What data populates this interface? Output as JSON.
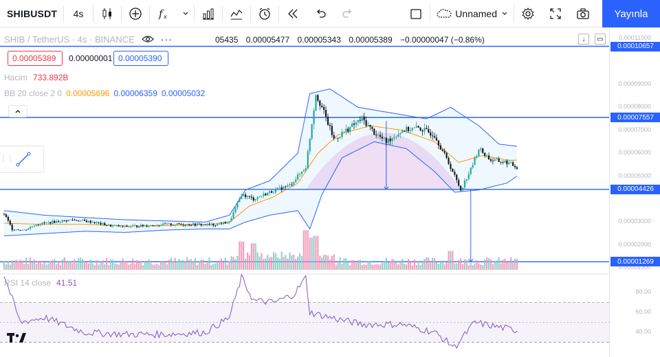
{
  "toolbar": {
    "symbol": "SHIBUSDT",
    "interval": "4s",
    "layout_name": "Unnamed",
    "publish_label": "Yayınla"
  },
  "legend": {
    "title": "SHIB / TetherUS · 4s · BINANCE",
    "ohlc": [
      "05435",
      "0.00005477",
      "0.00005343",
      "0.00005389",
      "−0.00000047 (−0.86%)"
    ],
    "bid": "0.00005389",
    "spread": "0.00000001",
    "ask": "0.00005390",
    "volume_label": "Hacim",
    "volume_value": "733.892B",
    "bb_label": "BB 20 close 2 0",
    "bb_middle": "0.00005696",
    "bb_upper": "0.00006359",
    "bb_lower": "0.00005032",
    "rsi_label": "RSI 14 close",
    "rsi_value": "41.51"
  },
  "price_scale": {
    "labels": [
      {
        "v": 0.00011,
        "t": "0.00011000"
      },
      {
        "v": 9e-05,
        "t": "0.00009000"
      },
      {
        "v": 8e-05,
        "t": "0.00008000"
      },
      {
        "v": 7e-05,
        "t": "0.00007000"
      },
      {
        "v": 6e-05,
        "t": "0.00006000"
      },
      {
        "v": 5e-05,
        "t": "0.00005000"
      },
      {
        "v": 3e-05,
        "t": "0.00003000"
      },
      {
        "v": 2e-05,
        "t": "0.00002000"
      },
      {
        "v": 1e-05,
        "t": "0.00001000"
      }
    ],
    "horizontal_lines": [
      {
        "v": 0.00010657,
        "t": "0.00010657"
      },
      {
        "v": 7.557e-05,
        "t": "0.00007557"
      },
      {
        "v": 4.426e-05,
        "t": "0.00004426"
      },
      {
        "v": 1.269e-05,
        "t": "0.00001269"
      }
    ]
  },
  "rsi_scale": {
    "labels": [
      {
        "v": 80,
        "t": "80.00"
      },
      {
        "v": 60,
        "t": "60.00"
      },
      {
        "v": 40,
        "t": "40.00"
      }
    ],
    "upper_band": 70,
    "lower_band": 30
  },
  "colors": {
    "up": "#26a69a",
    "down": "#131722",
    "bb_band": "#2962ff",
    "bb_mid": "#ff9800",
    "rsi": "#7e57c2",
    "hline": "#2962ff",
    "accent": "#2962ff"
  },
  "chart_data": {
    "type": "candlestick",
    "price_path": [
      [
        0,
        3.35e-05
      ],
      [
        4,
        2.7e-05
      ],
      [
        10,
        2.65e-05
      ],
      [
        16,
        2.9e-05
      ],
      [
        24,
        3e-05
      ],
      [
        34,
        3.1e-05
      ],
      [
        44,
        3e-05
      ],
      [
        52,
        2.85e-05
      ],
      [
        60,
        2.8e-05
      ],
      [
        72,
        2.85e-05
      ],
      [
        82,
        2.9e-05
      ],
      [
        92,
        2.9e-05
      ],
      [
        104,
        2.88e-05
      ],
      [
        112,
        3e-05
      ],
      [
        118,
        4.2e-05
      ],
      [
        124,
        4e-05
      ],
      [
        132,
        4.3e-05
      ],
      [
        142,
        4.6e-05
      ],
      [
        150,
        5.4e-05
      ],
      [
        155,
        8.6e-05
      ],
      [
        158,
        8e-05
      ],
      [
        164,
        6.6e-05
      ],
      [
        170,
        7e-05
      ],
      [
        178,
        7.5e-05
      ],
      [
        184,
        6.9e-05
      ],
      [
        190,
        6.5e-05
      ],
      [
        198,
        7e-05
      ],
      [
        206,
        7.1e-05
      ],
      [
        214,
        6.8e-05
      ],
      [
        222,
        5.4e-05
      ],
      [
        227,
        4.4e-05
      ],
      [
        232,
        5.3e-05
      ],
      [
        236,
        6.2e-05
      ],
      [
        242,
        5.7e-05
      ],
      [
        250,
        5.6e-05
      ],
      [
        255,
        5.39e-05
      ]
    ],
    "bb_upper": [
      [
        0,
        3.5e-05
      ],
      [
        20,
        3.3e-05
      ],
      [
        40,
        3.2e-05
      ],
      [
        60,
        3.1e-05
      ],
      [
        80,
        3.05e-05
      ],
      [
        100,
        3e-05
      ],
      [
        112,
        3.3e-05
      ],
      [
        120,
        4.4e-05
      ],
      [
        132,
        4.8e-05
      ],
      [
        146,
        6e-05
      ],
      [
        152,
        8.6e-05
      ],
      [
        162,
        8.8e-05
      ],
      [
        176,
        8e-05
      ],
      [
        196,
        7.7e-05
      ],
      [
        210,
        7.5e-05
      ],
      [
        222,
        8e-05
      ],
      [
        236,
        7.2e-05
      ],
      [
        246,
        6.4e-05
      ],
      [
        255,
        6.3e-05
      ]
    ],
    "bb_lower": [
      [
        0,
        2.4e-05
      ],
      [
        20,
        2.5e-05
      ],
      [
        40,
        2.6e-05
      ],
      [
        60,
        2.55e-05
      ],
      [
        80,
        2.65e-05
      ],
      [
        100,
        2.7e-05
      ],
      [
        112,
        2.7e-05
      ],
      [
        120,
        3e-05
      ],
      [
        132,
        3.3e-05
      ],
      [
        146,
        3.5e-05
      ],
      [
        152,
        2.7e-05
      ],
      [
        158,
        4.2e-05
      ],
      [
        168,
        5.8e-05
      ],
      [
        184,
        6.5e-05
      ],
      [
        200,
        6.2e-05
      ],
      [
        214,
        5.2e-05
      ],
      [
        224,
        4.3e-05
      ],
      [
        236,
        4.4e-05
      ],
      [
        250,
        4.7e-05
      ],
      [
        255,
        5e-05
      ]
    ],
    "bb_middle": [
      [
        0,
        2.95e-05
      ],
      [
        20,
        2.9e-05
      ],
      [
        40,
        2.9e-05
      ],
      [
        60,
        2.83e-05
      ],
      [
        80,
        2.85e-05
      ],
      [
        100,
        2.88e-05
      ],
      [
        112,
        3e-05
      ],
      [
        122,
        3.7e-05
      ],
      [
        134,
        4.1e-05
      ],
      [
        146,
        4.7e-05
      ],
      [
        156,
        6e-05
      ],
      [
        166,
        6.8e-05
      ],
      [
        182,
        7.2e-05
      ],
      [
        198,
        7e-05
      ],
      [
        214,
        6.5e-05
      ],
      [
        226,
        5.6e-05
      ],
      [
        238,
        5.9e-05
      ],
      [
        250,
        5.7e-05
      ],
      [
        255,
        5.7e-05
      ]
    ],
    "rsi": [
      [
        0,
        97
      ],
      [
        8,
        50
      ],
      [
        20,
        55
      ],
      [
        40,
        40
      ],
      [
        60,
        38
      ],
      [
        80,
        38
      ],
      [
        100,
        40
      ],
      [
        112,
        55
      ],
      [
        118,
        95
      ],
      [
        124,
        72
      ],
      [
        134,
        70
      ],
      [
        144,
        78
      ],
      [
        150,
        95
      ],
      [
        152,
        60
      ],
      [
        162,
        55
      ],
      [
        178,
        48
      ],
      [
        198,
        48
      ],
      [
        214,
        40
      ],
      [
        224,
        25
      ],
      [
        234,
        50
      ],
      [
        244,
        46
      ],
      [
        255,
        42
      ]
    ],
    "volume_spikes": [
      [
        118,
        0.6
      ],
      [
        124,
        0.55
      ],
      [
        150,
        0.9
      ],
      [
        152,
        0.7
      ],
      [
        155,
        0.75
      ],
      [
        222,
        0.5
      ]
    ],
    "n_bars": 256
  }
}
